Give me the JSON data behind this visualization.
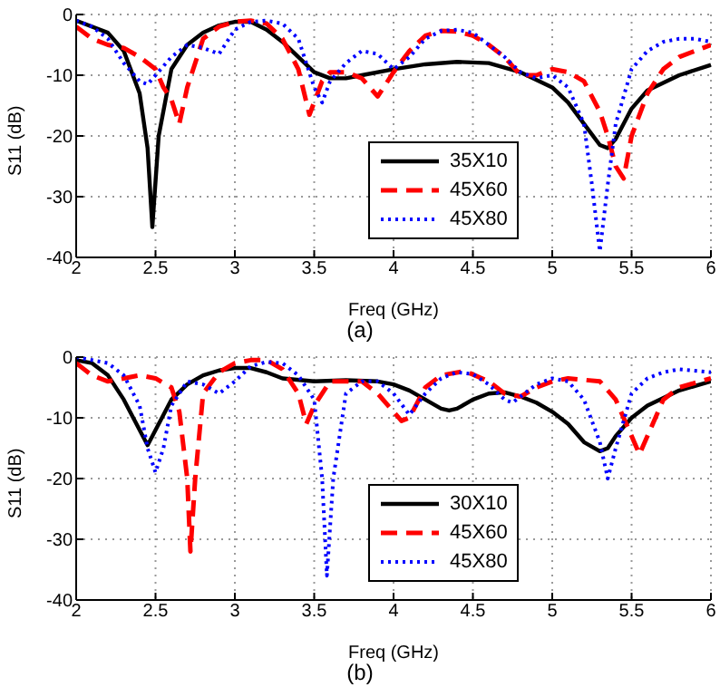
{
  "chart_data": [
    {
      "type": "line",
      "xlabel": "Freq (GHz)",
      "ylabel": "S11 (dB)",
      "annotations": [
        "(a)"
      ],
      "xlim": [
        2,
        6
      ],
      "xticks": [
        2,
        2.5,
        3,
        3.5,
        4,
        4.5,
        5,
        5.5,
        6
      ],
      "ylim": [
        -40,
        0
      ],
      "yticks": [
        -40,
        -30,
        -20,
        -10,
        0
      ],
      "grid": true,
      "legend": "bottom right",
      "marker": "none",
      "series": [
        {
          "name": "35X10",
          "color": "#000000",
          "line_style": "solid",
          "x": [
            2,
            2.2,
            2.3,
            2.4,
            2.45,
            2.48,
            2.52,
            2.6,
            2.7,
            2.8,
            2.9,
            3.0,
            3.1,
            3.2,
            3.3,
            3.4,
            3.5,
            3.6,
            3.7,
            3.8,
            4.0,
            4.2,
            4.4,
            4.6,
            4.8,
            5.0,
            5.1,
            5.2,
            5.3,
            5.35,
            5.4,
            5.5,
            5.6,
            5.8,
            6.0
          ],
          "values": [
            -1,
            -3,
            -6,
            -13,
            -22,
            -35,
            -20,
            -9,
            -5,
            -3,
            -1.8,
            -1.2,
            -1.2,
            -2.5,
            -4.5,
            -7,
            -9.5,
            -10.5,
            -10.5,
            -10,
            -9,
            -8.2,
            -7.8,
            -8,
            -9.5,
            -12,
            -14.5,
            -18,
            -21.5,
            -22,
            -20.5,
            -15.5,
            -12.5,
            -10,
            -8.3
          ]
        },
        {
          "name": "45X60",
          "color": "#ff0000",
          "line_style": "dashed",
          "x": [
            2,
            2.1,
            2.2,
            2.3,
            2.4,
            2.5,
            2.55,
            2.6,
            2.65,
            2.7,
            2.8,
            2.9,
            3.0,
            3.1,
            3.2,
            3.3,
            3.4,
            3.47,
            3.55,
            3.6,
            3.7,
            3.8,
            3.9,
            4.0,
            4.1,
            4.2,
            4.3,
            4.4,
            4.5,
            4.6,
            4.7,
            4.8,
            4.9,
            5.0,
            5.1,
            5.2,
            5.3,
            5.35,
            5.4,
            5.45,
            5.5,
            5.6,
            5.7,
            5.8,
            6.0
          ],
          "values": [
            -2,
            -4,
            -5,
            -5.5,
            -7,
            -9,
            -12,
            -14,
            -18,
            -12,
            -4,
            -2,
            -1.2,
            -1,
            -1.5,
            -4,
            -9,
            -16.5,
            -11,
            -9.5,
            -9.5,
            -10.5,
            -13.5,
            -9.5,
            -6,
            -3.5,
            -2.7,
            -2.8,
            -3.5,
            -5,
            -7,
            -10,
            -10,
            -9,
            -9.5,
            -11,
            -16,
            -20,
            -25,
            -27,
            -20,
            -13,
            -9,
            -7,
            -5
          ]
        },
        {
          "name": "45X80",
          "color": "#0000ff",
          "line_style": "dotted",
          "x": [
            2,
            2.1,
            2.2,
            2.3,
            2.4,
            2.45,
            2.5,
            2.6,
            2.7,
            2.8,
            2.9,
            3.0,
            3.1,
            3.2,
            3.3,
            3.4,
            3.5,
            3.55,
            3.6,
            3.7,
            3.8,
            3.9,
            4.0,
            4.1,
            4.2,
            4.3,
            4.4,
            4.5,
            4.6,
            4.7,
            4.8,
            4.9,
            5.0,
            5.1,
            5.2,
            5.25,
            5.3,
            5.35,
            5.4,
            5.5,
            5.6,
            5.7,
            5.8,
            5.9,
            6.0
          ],
          "values": [
            -1,
            -2,
            -4,
            -8,
            -11,
            -11.5,
            -10,
            -7,
            -5,
            -5.5,
            -6.5,
            -2.5,
            -1.2,
            -1,
            -1.5,
            -4,
            -12,
            -14.5,
            -11,
            -8,
            -6,
            -6.5,
            -9,
            -7,
            -4,
            -2.7,
            -2.5,
            -3,
            -5,
            -7,
            -9.5,
            -10.5,
            -10,
            -12,
            -18,
            -28,
            -39,
            -28,
            -18,
            -9,
            -6,
            -4.5,
            -4,
            -4,
            -4.5
          ]
        }
      ]
    },
    {
      "type": "line",
      "xlabel": "Freq (GHz)",
      "ylabel": "S11 (dB)",
      "annotations": [
        "(b)"
      ],
      "xlim": [
        2,
        6
      ],
      "xticks": [
        2,
        2.5,
        3,
        3.5,
        4,
        4.5,
        5,
        5.5,
        6
      ],
      "ylim": [
        -40,
        0
      ],
      "yticks": [
        -40,
        -30,
        -20,
        -10,
        0
      ],
      "grid": true,
      "legend": "bottom right",
      "marker": "none",
      "series": [
        {
          "name": "30X10",
          "color": "#000000",
          "line_style": "solid",
          "x": [
            2,
            2.1,
            2.2,
            2.3,
            2.4,
            2.45,
            2.5,
            2.6,
            2.7,
            2.8,
            2.9,
            3.0,
            3.1,
            3.2,
            3.3,
            3.5,
            3.7,
            3.9,
            4.0,
            4.1,
            4.2,
            4.3,
            4.35,
            4.4,
            4.5,
            4.6,
            4.7,
            4.8,
            4.9,
            5.0,
            5.1,
            5.2,
            5.3,
            5.35,
            5.4,
            5.5,
            5.6,
            5.8,
            6.0
          ],
          "values": [
            -0.5,
            -1,
            -3,
            -7,
            -12,
            -14.5,
            -12,
            -7,
            -4.5,
            -3,
            -2.2,
            -1.8,
            -1.8,
            -2.5,
            -3.5,
            -4,
            -3.8,
            -4,
            -4.5,
            -5.5,
            -7,
            -8.5,
            -8.8,
            -8.5,
            -7,
            -6,
            -5.8,
            -6.5,
            -7.5,
            -9,
            -11,
            -14,
            -15.5,
            -15,
            -13,
            -10,
            -8,
            -5.5,
            -4
          ]
        },
        {
          "name": "45X60",
          "color": "#ff0000",
          "line_style": "dashed",
          "x": [
            2,
            2.1,
            2.2,
            2.3,
            2.4,
            2.5,
            2.6,
            2.65,
            2.7,
            2.72,
            2.75,
            2.8,
            2.9,
            3.0,
            3.1,
            3.2,
            3.3,
            3.4,
            3.45,
            3.5,
            3.6,
            3.7,
            3.8,
            3.9,
            4.0,
            4.05,
            4.1,
            4.2,
            4.3,
            4.45,
            4.6,
            4.7,
            4.8,
            4.9,
            5.0,
            5.1,
            5.3,
            5.4,
            5.5,
            5.55,
            5.6,
            5.7,
            5.8,
            6.0
          ],
          "values": [
            -1,
            -3,
            -4,
            -3.5,
            -3,
            -3.5,
            -5,
            -9,
            -20,
            -32,
            -20,
            -6,
            -2.5,
            -1,
            -0.5,
            -0.5,
            -2,
            -6,
            -11,
            -8,
            -4,
            -4,
            -4,
            -6,
            -9,
            -10.5,
            -10,
            -5,
            -3,
            -2.3,
            -4,
            -6,
            -6.5,
            -5,
            -4,
            -3.5,
            -4,
            -7,
            -13,
            -16,
            -13,
            -7,
            -5,
            -3.5
          ]
        },
        {
          "name": "45X80",
          "color": "#0000ff",
          "line_style": "dotted",
          "x": [
            2,
            2.2,
            2.3,
            2.4,
            2.45,
            2.5,
            2.55,
            2.6,
            2.7,
            2.8,
            2.9,
            3.0,
            3.1,
            3.2,
            3.3,
            3.4,
            3.5,
            3.55,
            3.58,
            3.62,
            3.7,
            3.8,
            3.9,
            4.0,
            4.1,
            4.2,
            4.3,
            4.4,
            4.5,
            4.6,
            4.7,
            4.75,
            4.8,
            4.9,
            5.0,
            5.1,
            5.2,
            5.3,
            5.35,
            5.4,
            5.5,
            5.6,
            5.7,
            5.8,
            6.0
          ],
          "values": [
            0,
            -1,
            -3,
            -8,
            -15,
            -19,
            -15,
            -8,
            -4,
            -4.5,
            -6,
            -4,
            -1.5,
            -0.8,
            -1,
            -3,
            -7,
            -20,
            -36,
            -20,
            -6,
            -4,
            -4,
            -6,
            -9.5,
            -6,
            -3.5,
            -2.5,
            -2.8,
            -4.5,
            -7,
            -7.5,
            -6.5,
            -4.5,
            -3.5,
            -4,
            -7,
            -14,
            -20,
            -15,
            -6,
            -3.5,
            -2.5,
            -2,
            -2.5
          ]
        }
      ]
    }
  ]
}
